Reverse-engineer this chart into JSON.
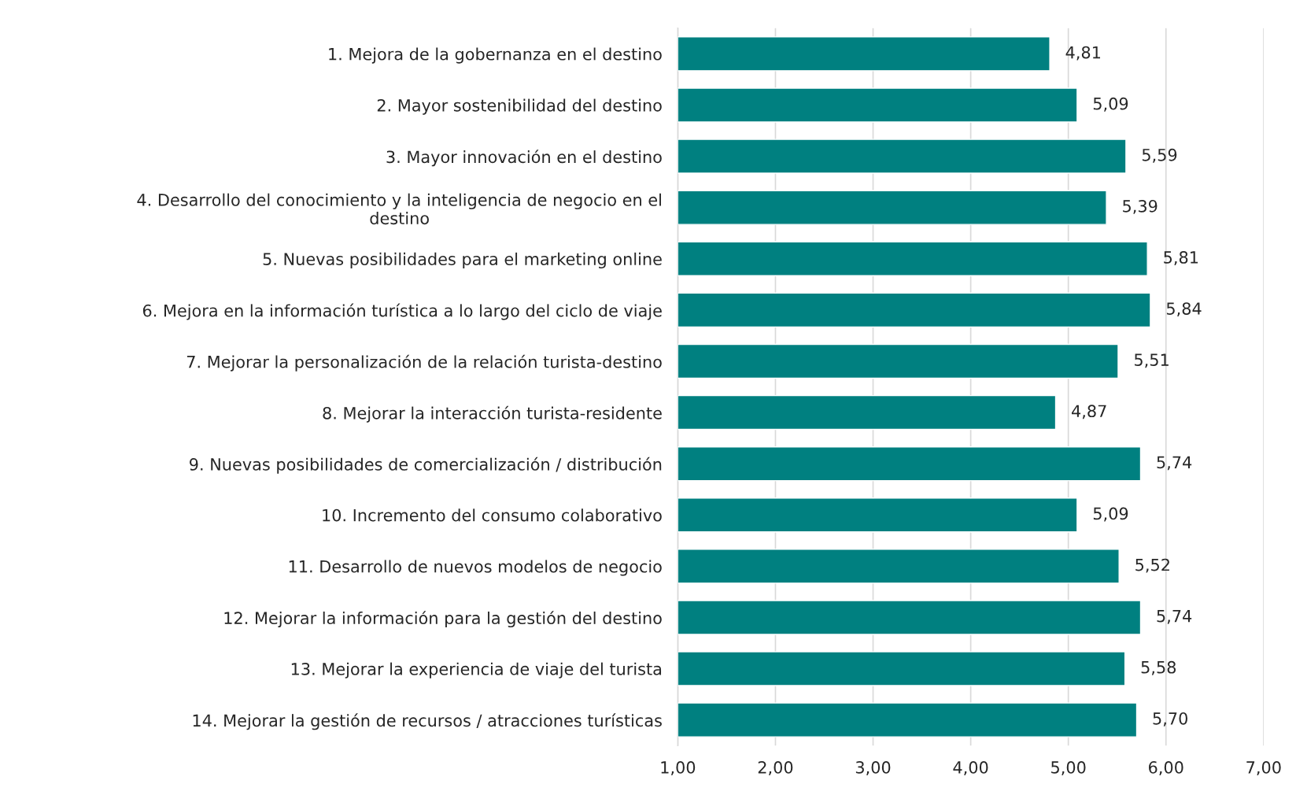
{
  "chart_data": {
    "type": "bar",
    "orientation": "horizontal",
    "categories": [
      "1. Mejora de la gobernanza en el destino",
      "2. Mayor sostenibilidad del destino",
      "3. Mayor innovación en el destino",
      "4. Desarrollo del conocimiento y la inteligencia de negocio en el\ndestino",
      "5. Nuevas posibilidades para el marketing online",
      "6. Mejora en la información turística a lo largo del ciclo de viaje",
      "7. Mejorar la personalización de la relación turista-destino",
      "8. Mejorar la interacción turista-residente",
      "9. Nuevas posibilidades de comercialización / distribución",
      "10. Incremento del consumo colaborativo",
      "11. Desarrollo de nuevos modelos de negocio",
      "12. Mejorar la información para la gestión del destino",
      "13. Mejorar la experiencia de viaje del turista",
      "14. Mejorar la gestión de recursos / atracciones turísticas"
    ],
    "values": [
      4.81,
      5.09,
      5.59,
      5.39,
      5.81,
      5.84,
      5.51,
      4.87,
      5.74,
      5.09,
      5.52,
      5.74,
      5.58,
      5.7
    ],
    "value_labels": [
      "4,81",
      "5,09",
      "5,59",
      "5,39",
      "5,81",
      "5,84",
      "5,51",
      "4,87",
      "5,74",
      "5,09",
      "5,52",
      "5,74",
      "5,58",
      "5,70"
    ],
    "color": "#008080",
    "xlim": [
      1,
      7
    ],
    "xticks": [
      {
        "value": 1,
        "label": "1,00"
      },
      {
        "value": 2,
        "label": "2,00"
      },
      {
        "value": 3,
        "label": "3,00"
      },
      {
        "value": 4,
        "label": "4,00"
      },
      {
        "value": 5,
        "label": "5,00"
      },
      {
        "value": 6,
        "label": "6,00"
      },
      {
        "value": 7,
        "label": "7,00"
      }
    ],
    "grid": "x"
  }
}
